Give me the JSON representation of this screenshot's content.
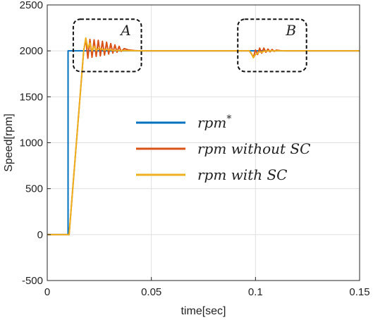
{
  "chart_data": {
    "type": "line",
    "title": "",
    "xlabel": "time[sec]",
    "ylabel": "Speed[rpm]",
    "xlim": [
      0,
      0.15
    ],
    "ylim": [
      -500,
      2500
    ],
    "xticks": [
      0,
      0.05,
      0.1,
      0.15
    ],
    "xtick_labels": [
      "0",
      "0.05",
      "0.1",
      "0.15"
    ],
    "yticks": [
      -500,
      0,
      500,
      1000,
      1500,
      2000,
      2500
    ],
    "ytick_labels": [
      "-500",
      "0",
      "500",
      "1000",
      "1500",
      "2000",
      "2500"
    ],
    "grid": true,
    "legend_position": "center-right",
    "series": [
      {
        "name": "rpm*",
        "color": "#0072BD",
        "x": [
          0,
          0.01,
          0.01,
          0.15
        ],
        "y": [
          0,
          0,
          2000,
          2000
        ]
      },
      {
        "name": "rpm without SC",
        "color": "#D95319",
        "x": [
          0,
          0.0105,
          0.0175,
          0.0185,
          0.0195,
          0.0205,
          0.0215,
          0.0225,
          0.0235,
          0.0245,
          0.0255,
          0.0265,
          0.0275,
          0.0285,
          0.0295,
          0.0305,
          0.0315,
          0.0325,
          0.0335,
          0.0345,
          0.0355,
          0.037,
          0.039,
          0.042,
          0.045,
          0.097,
          0.098,
          0.099,
          0.1,
          0.101,
          0.102,
          0.103,
          0.104,
          0.105,
          0.106,
          0.107,
          0.108,
          0.109,
          0.11,
          0.112,
          0.115,
          0.15
        ],
        "y": [
          0,
          0,
          2000,
          2130,
          1920,
          2125,
          1930,
          2120,
          1940,
          2115,
          1945,
          2105,
          1955,
          2095,
          1965,
          2080,
          1975,
          2065,
          1985,
          2050,
          1995,
          2025,
          2010,
          2003,
          2000,
          2000,
          1970,
          1930,
          2010,
          1960,
          2030,
          1975,
          2030,
          1985,
          2020,
          1990,
          2015,
          1995,
          2008,
          2002,
          2000,
          2000
        ]
      },
      {
        "name": "rpm with SC",
        "color": "#EDB120",
        "x": [
          0,
          0.0105,
          0.0175,
          0.0185,
          0.0195,
          0.0205,
          0.0215,
          0.0225,
          0.0235,
          0.025,
          0.027,
          0.029,
          0.032,
          0.035,
          0.04,
          0.045,
          0.097,
          0.098,
          0.099,
          0.1,
          0.101,
          0.102,
          0.103,
          0.104,
          0.105,
          0.107,
          0.11,
          0.15
        ],
        "y": [
          0,
          0,
          2000,
          2140,
          2030,
          2085,
          2000,
          2050,
          2005,
          2030,
          2010,
          2015,
          2005,
          2003,
          2001,
          2000,
          2000,
          1975,
          1925,
          1960,
          1975,
          1990,
          1985,
          1995,
          1998,
          2000,
          2000,
          2000
        ]
      }
    ],
    "annotations": [
      {
        "label": "A",
        "x_range": [
          0.0125,
          0.0452
        ],
        "y_range": [
          1775,
          2345
        ]
      },
      {
        "label": "B",
        "x_range": [
          0.0915,
          0.1245
        ],
        "y_range": [
          1775,
          2345
        ]
      }
    ]
  }
}
